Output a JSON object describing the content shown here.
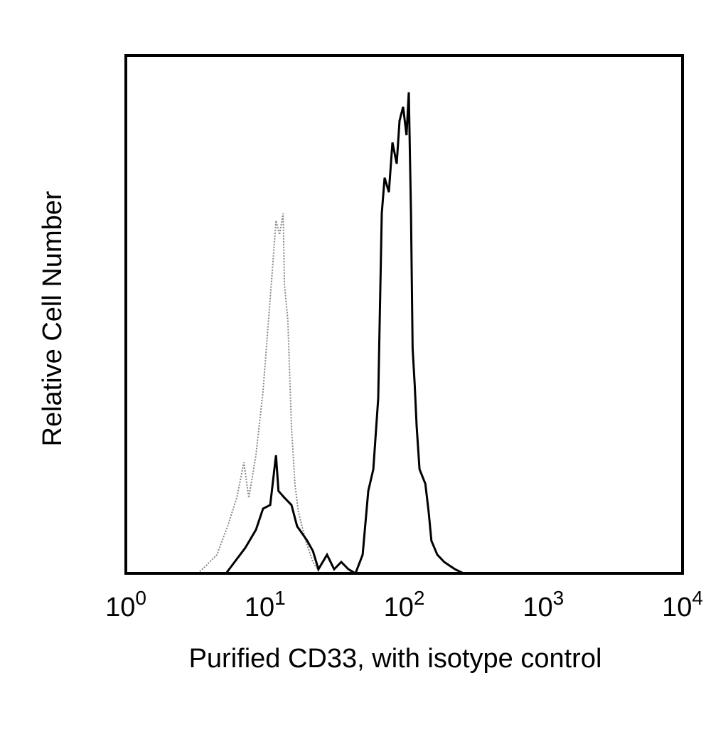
{
  "chart_data": {
    "type": "line",
    "x_label": "Purified CD33, with isotype control",
    "y_label": "Relative Cell Number",
    "x_scale": "log",
    "xlim": [
      1,
      10000
    ],
    "xticks": [
      {
        "value": 1,
        "label": "10^0"
      },
      {
        "value": 10,
        "label": "10^1"
      },
      {
        "value": 100,
        "label": "10^2"
      },
      {
        "value": 1000,
        "label": "10^3"
      },
      {
        "value": 10000,
        "label": "10^4"
      }
    ],
    "ylim": [
      0,
      100
    ],
    "grid": false,
    "series": [
      {
        "color": "#888888",
        "line_style": "dotted",
        "x": [
          3.28,
          3.78,
          4.51,
          5.38,
          6.27,
          7.05,
          7.65,
          8.61,
          9.68,
          10.6,
          11.3,
          12.0,
          12.7,
          13.5,
          13.8,
          14.6,
          15.5,
          16.4,
          17.4,
          19.6,
          22.1,
          24.8
        ],
        "values": [
          0,
          1.5,
          3.6,
          9.1,
          14.6,
          21.4,
          14.6,
          22.8,
          35.2,
          48.9,
          58.5,
          68.1,
          65.4,
          69.5,
          55.8,
          48.9,
          28.3,
          17.3,
          11.8,
          6.3,
          2.2,
          0
        ]
      },
      {
        "color": "#000000",
        "line_style": "solid",
        "x": [
          5.25,
          6.05,
          7.21,
          8.61,
          9.68,
          10.9,
          12.0,
          12.5,
          13.8,
          15.5,
          17.0,
          18.5,
          20.1,
          22.1,
          24.2,
          27.9,
          31.4,
          35.3,
          39.7,
          44.7,
          50.3,
          55.2,
          60.0,
          65.1,
          69.0,
          72.4,
          77.7,
          82.4,
          88.4,
          92.6,
          98.2,
          104,
          108,
          112,
          115,
          119,
          123,
          129,
          142,
          150,
          157,
          173,
          194,
          232,
          267
        ],
        "values": [
          0,
          2.2,
          4.9,
          8.4,
          12.5,
          13.2,
          22.8,
          15.9,
          14.6,
          13.2,
          9.1,
          7.7,
          6.3,
          4.3,
          0.8,
          3.6,
          0.8,
          2.2,
          0.8,
          0,
          3.6,
          15.9,
          20.1,
          33.8,
          69.5,
          76.4,
          73.6,
          83.2,
          79.1,
          87.4,
          90.1,
          84.6,
          92.9,
          69.5,
          43.4,
          36.5,
          28.3,
          20.1,
          17.3,
          11.8,
          6.3,
          3.6,
          2.2,
          0.8,
          0
        ]
      }
    ]
  }
}
